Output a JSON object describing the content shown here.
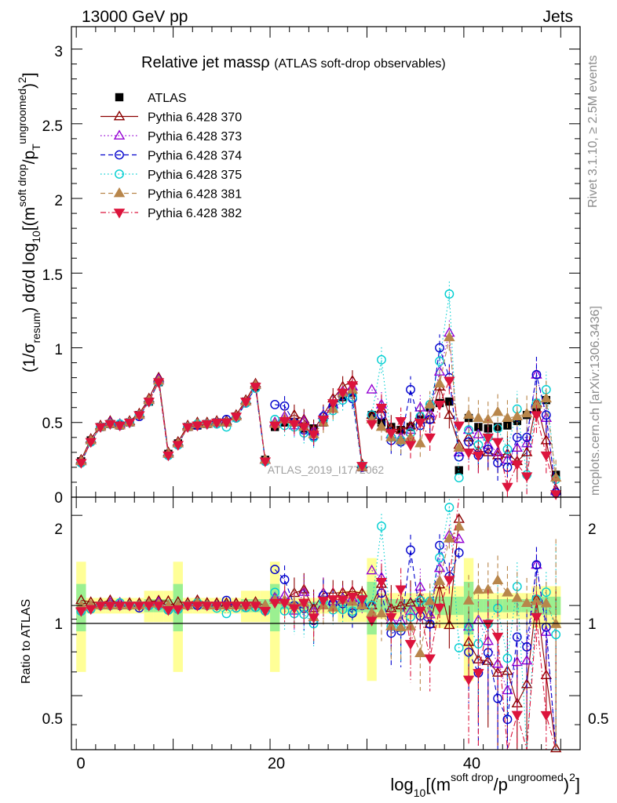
{
  "header": {
    "left": "13000 GeV pp",
    "right": "Jets"
  },
  "side_labels": {
    "rivet": "Rivet 3.1.10, ≥ 2.5M events",
    "mcplots": "mcplots.cern.ch [arXiv:1306.3436]"
  },
  "chart_data": {
    "type": "scatter",
    "title": "Relative jet massρ",
    "subtitle": "(ATLAS soft-drop observables)",
    "watermark": "ATLAS_2019_I1772062",
    "xlabel_main": "log",
    "xlabel_sub": "10",
    "xlabel_rest": "[(m",
    "xlabel_sup1": "soft drop",
    "xlabel_mid": "/p",
    "xlabel_sup2": "ungroomed",
    "xlabel_end": ")",
    "xlabel_pow": "2",
    "xlabel_close": "]",
    "ylabel_main_a": "(1/σ",
    "ylabel_main_sub": "resum",
    "ylabel_main_b": ") dσ/d log",
    "ylabel_main_sub2": "10",
    "ylabel_main_c": "[(m",
    "ylabel_main_sup1": "soft drop",
    "ylabel_main_d": "/p",
    "ylabel_main_sub3": "T",
    "ylabel_main_sup2": "ungroomed",
    "ylabel_main_e": ")",
    "ylabel_main_sup3": "2",
    "ylabel_main_f": "]",
    "ylabel_ratio": "Ratio to ATLAS",
    "xlim": [
      -0.5,
      52
    ],
    "ylim": [
      0,
      3.15
    ],
    "ratio_ylim": [
      0.33,
      2.3
    ],
    "x_ticks": [
      "0",
      "20",
      "40"
    ],
    "y_ticks": [
      "0",
      "0.5",
      "1",
      "1.5",
      "2",
      "2.5",
      "3"
    ],
    "ratio_ticks": [
      "0.5",
      "1",
      "2"
    ],
    "grid": false,
    "legend_position": "top-left",
    "x": [
      0.5,
      1.5,
      2.5,
      3.5,
      4.5,
      5.5,
      6.5,
      7.5,
      8.5,
      9.5,
      10.5,
      11.5,
      12.5,
      13.5,
      14.5,
      15.5,
      16.5,
      17.5,
      18.5,
      19.5,
      20.5,
      21.5,
      22.5,
      23.5,
      24.5,
      25.5,
      26.5,
      27.5,
      28.5,
      29.5,
      30.5,
      31.5,
      32.5,
      33.5,
      34.5,
      35.5,
      36.5,
      37.5,
      38.5,
      39.5,
      40.5,
      41.5,
      42.5,
      43.5,
      44.5,
      45.5,
      46.5,
      47.5,
      48.5,
      49.5
    ],
    "series": [
      {
        "name": "ATLAS",
        "color": "#000000",
        "marker": "square",
        "dash": "none",
        "values": [
          0.24,
          0.38,
          0.47,
          0.49,
          0.48,
          0.5,
          0.55,
          0.64,
          0.77,
          0.29,
          0.36,
          0.47,
          0.48,
          0.49,
          0.5,
          0.5,
          0.54,
          0.64,
          0.74,
          0.25,
          0.47,
          0.5,
          0.5,
          0.46,
          0.46,
          0.5,
          0.6,
          0.67,
          0.7,
          0.2,
          0.55,
          0.5,
          0.47,
          0.45,
          0.47,
          0.52,
          0.6,
          0.63,
          0.64,
          0.18,
          0.53,
          0.47,
          0.46,
          0.47,
          0.48,
          0.51,
          0.55,
          0.6,
          0.65,
          0.15
        ]
      },
      {
        "name": "Pythia 6.428 370",
        "color": "#8b0000",
        "marker": "triangle-up-open",
        "dash": "none",
        "values": [
          0.25,
          0.39,
          0.48,
          0.51,
          0.49,
          0.51,
          0.56,
          0.66,
          0.8,
          0.3,
          0.37,
          0.48,
          0.5,
          0.5,
          0.51,
          0.51,
          0.55,
          0.65,
          0.76,
          0.25,
          0.5,
          0.52,
          0.55,
          0.52,
          0.45,
          0.55,
          0.66,
          0.74,
          0.78,
          0.22,
          0.55,
          0.59,
          0.46,
          0.45,
          0.48,
          0.55,
          0.52,
          0.74,
          0.55,
          0.35,
          0.4,
          0.31,
          0.3,
          0.28,
          0.29,
          0.24,
          0.3,
          0.63,
          0.38,
          0.05
        ]
      },
      {
        "name": "Pythia 6.428 373",
        "color": "#9400d3",
        "marker": "triangle-up-open",
        "dash": "dotted",
        "values": [
          0.24,
          0.38,
          0.47,
          0.5,
          0.49,
          0.5,
          0.55,
          0.65,
          0.79,
          0.29,
          0.36,
          0.47,
          0.49,
          0.49,
          0.5,
          0.5,
          0.54,
          0.64,
          0.75,
          0.25,
          0.5,
          0.54,
          0.48,
          0.51,
          0.44,
          0.55,
          0.62,
          0.71,
          0.74,
          0.2,
          0.72,
          0.62,
          0.42,
          0.4,
          0.45,
          0.6,
          0.56,
          0.84,
          1.1,
          0.3,
          0.45,
          0.42,
          0.35,
          0.3,
          0.25,
          0.33,
          0.36,
          0.82,
          0.53,
          0.04
        ]
      },
      {
        "name": "Pythia 6.428 374",
        "color": "#0000cd",
        "marker": "circle-open",
        "dash": "dashed",
        "values": [
          0.23,
          0.37,
          0.47,
          0.49,
          0.48,
          0.5,
          0.54,
          0.64,
          0.77,
          0.28,
          0.35,
          0.47,
          0.48,
          0.49,
          0.5,
          0.52,
          0.53,
          0.63,
          0.73,
          0.24,
          0.62,
          0.61,
          0.5,
          0.45,
          0.41,
          0.54,
          0.61,
          0.68,
          0.66,
          0.2,
          0.55,
          0.55,
          0.38,
          0.37,
          0.72,
          0.48,
          0.52,
          1.0,
          0.8,
          0.27,
          0.37,
          0.28,
          0.32,
          0.23,
          0.2,
          0.4,
          0.4,
          0.82,
          0.55,
          0.03
        ]
      },
      {
        "name": "Pythia 6.428 375",
        "color": "#00ced1",
        "marker": "circle-open",
        "dash": "dotted",
        "values": [
          0.23,
          0.37,
          0.47,
          0.49,
          0.49,
          0.5,
          0.55,
          0.64,
          0.77,
          0.28,
          0.35,
          0.47,
          0.49,
          0.49,
          0.49,
          0.47,
          0.53,
          0.63,
          0.73,
          0.24,
          0.52,
          0.48,
          0.47,
          0.43,
          0.4,
          0.52,
          0.58,
          0.65,
          0.67,
          0.21,
          0.55,
          0.92,
          0.4,
          0.38,
          0.43,
          0.54,
          0.62,
          0.91,
          1.36,
          0.13,
          0.45,
          0.35,
          0.4,
          0.46,
          0.32,
          0.59,
          0.15,
          0.63,
          0.72,
          0.12
        ]
      },
      {
        "name": "Pythia 6.428 381",
        "color": "#b8864b",
        "marker": "triangle-up-filled",
        "dash": "dashed",
        "values": [
          0.24,
          0.38,
          0.47,
          0.49,
          0.48,
          0.5,
          0.55,
          0.65,
          0.78,
          0.29,
          0.36,
          0.47,
          0.49,
          0.49,
          0.5,
          0.5,
          0.54,
          0.64,
          0.75,
          0.25,
          0.49,
          0.52,
          0.5,
          0.47,
          0.42,
          0.5,
          0.59,
          0.7,
          0.72,
          0.2,
          0.52,
          0.47,
          0.4,
          0.38,
          0.4,
          0.36,
          0.62,
          0.76,
          1.07,
          0.33,
          0.55,
          0.53,
          0.52,
          0.57,
          0.53,
          0.54,
          0.56,
          0.62,
          0.66,
          0.13
        ]
      },
      {
        "name": "Pythia 6.428 382",
        "color": "#dc143c",
        "marker": "triangle-down-filled",
        "dash": "dashdot",
        "values": [
          0.23,
          0.37,
          0.47,
          0.49,
          0.48,
          0.5,
          0.55,
          0.64,
          0.77,
          0.28,
          0.35,
          0.47,
          0.48,
          0.49,
          0.5,
          0.5,
          0.54,
          0.64,
          0.74,
          0.24,
          0.48,
          0.51,
          0.49,
          0.47,
          0.42,
          0.52,
          0.63,
          0.7,
          0.75,
          0.21,
          0.49,
          0.6,
          0.43,
          0.51,
          0.35,
          0.5,
          0.4,
          0.62,
          0.78,
          0.48,
          0.3,
          0.28,
          0.4,
          0.37,
          0.07,
          0.22,
          0.14,
          0.55,
          0.28,
          0.02
        ]
      }
    ]
  }
}
